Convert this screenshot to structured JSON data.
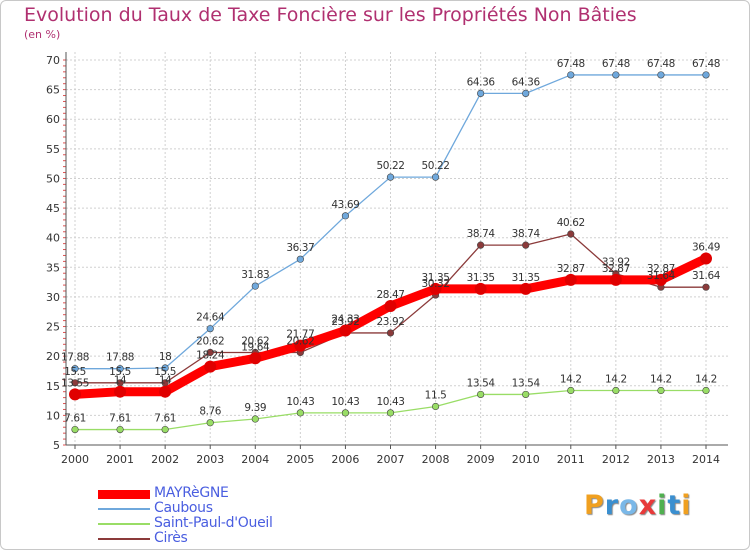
{
  "chart_data": {
    "type": "line",
    "title": "Evolution du Taux de Taxe Foncière sur les Propriétés Non Bâties",
    "subtitle": "(en %)",
    "x": [
      2000,
      2001,
      2002,
      2003,
      2004,
      2005,
      2006,
      2007,
      2008,
      2009,
      2010,
      2011,
      2012,
      2013,
      2014
    ],
    "ylim": [
      5,
      70
    ],
    "yticks": [
      5,
      10,
      15,
      20,
      25,
      30,
      35,
      40,
      45,
      50,
      55,
      60,
      65,
      70
    ],
    "grid": true,
    "legend": "bottom-left",
    "series": [
      {
        "name": "MAYRèGNE",
        "color": "#ff0000",
        "values": [
          13.55,
          14,
          14,
          18.24,
          19.64,
          21.77,
          24.33,
          28.47,
          31.35,
          31.35,
          31.35,
          32.87,
          32.87,
          32.87,
          36.49
        ],
        "labels": [
          "13.55",
          "14",
          "14",
          "18.24",
          "19.64",
          "21.77",
          "24.33",
          "28.47",
          "31.35",
          "31.35",
          "31.35",
          "32.87",
          "32.87",
          "32.87",
          "36.49"
        ]
      },
      {
        "name": "Caubous",
        "color": "#6fa8dc",
        "values": [
          17.88,
          17.88,
          18,
          24.64,
          31.83,
          36.37,
          43.69,
          50.22,
          50.22,
          64.36,
          64.36,
          67.48,
          67.48,
          67.48,
          67.48
        ],
        "labels": [
          "17.88",
          "17.88",
          "18",
          "24.64",
          "31.83",
          "36.37",
          "43.69",
          "50.22",
          "50.22",
          "64.36",
          "64.36",
          "67.48",
          "67.48",
          "67.48",
          "67.48"
        ]
      },
      {
        "name": "Saint-Paul-d'Oueil",
        "color": "#99dd66",
        "values": [
          7.61,
          7.61,
          7.61,
          8.76,
          9.39,
          10.43,
          10.43,
          10.43,
          11.5,
          13.54,
          13.54,
          14.2,
          14.2,
          14.2,
          14.2
        ],
        "labels": [
          "7.61",
          "7.61",
          "7.61",
          "8.76",
          "9.39",
          "10.43",
          "10.43",
          "10.43",
          "11.5",
          "13.54",
          "13.54",
          "14.2",
          "14.2",
          "14.2",
          "14.2"
        ]
      },
      {
        "name": "Cirès",
        "color": "#8b3a3a",
        "values": [
          15.5,
          15.5,
          15.5,
          20.62,
          20.62,
          20.62,
          23.92,
          23.92,
          30.32,
          38.74,
          38.74,
          40.62,
          33.92,
          31.64,
          31.64
        ],
        "labels": [
          "15.5",
          "15.5",
          "15.5",
          "20.62",
          "20.62",
          "20.62",
          "23.92",
          "23.92",
          "30.32",
          "38.74",
          "38.74",
          "40.62",
          "33.92",
          "31.64",
          "31.64"
        ]
      }
    ]
  },
  "logo": {
    "letters": [
      "P",
      "r",
      "o",
      "x",
      "i",
      "t",
      "i"
    ],
    "colors": [
      "#f0a020",
      "#3a8fd0",
      "#7ab8e8",
      "#e83a3a",
      "#50b050",
      "#3a8fd0",
      "#f0a020"
    ]
  }
}
